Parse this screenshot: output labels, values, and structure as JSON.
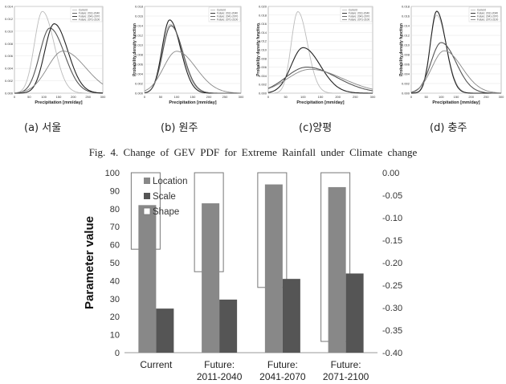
{
  "figure_caption": "Fig. 4. Change of GEV PDF for Extreme Rainfall under Climate change",
  "panels": [
    {
      "caption": "(a) 서울",
      "xlabel": "Precipitation [mm/day]",
      "ylabel": "",
      "xticks": [
        "0",
        "50",
        "100",
        "150",
        "200",
        "250",
        "300"
      ],
      "yticks": [
        "0.000",
        "0.002",
        "0.004",
        "0.006",
        "0.008",
        "0.010",
        "0.012",
        "0.014"
      ],
      "legend": [
        "Current",
        "Future: 2011-2040",
        "Future: 2041-2070",
        "Future: 2071-2100"
      ]
    },
    {
      "caption": "(b) 원주",
      "xlabel": "Precipitation [mm/day]",
      "ylabel": "Probability density function",
      "xticks": [
        "0",
        "50",
        "100",
        "150",
        "200",
        "250",
        "300"
      ],
      "yticks": [
        "0.000",
        "0.002",
        "0.004",
        "0.006",
        "0.008",
        "0.010",
        "0.012",
        "0.014",
        "0.016",
        "0.018"
      ],
      "legend": [
        "Current",
        "Future: 2011-2040",
        "Future: 2041-2070",
        "Future: 2071-2100"
      ]
    },
    {
      "caption": "(c)양평",
      "xlabel": "Precipitation [mm/day]",
      "ylabel": "Probability density function",
      "xticks": [
        "0",
        "50",
        "100",
        "150",
        "200",
        "250",
        "300"
      ],
      "yticks": [
        "0.000",
        "0.002",
        "0.004",
        "0.006",
        "0.008",
        "0.010",
        "0.012",
        "0.014",
        "0.016",
        "0.018",
        "0.020"
      ],
      "legend": [
        "Current",
        "Future: 2011-2040",
        "Future: 2041-2070",
        "Future: 2071-2100"
      ]
    },
    {
      "caption": "(d) 충주",
      "xlabel": "Precipitation [mm/day]",
      "ylabel": "Probability density function",
      "xticks": [
        "0",
        "50",
        "100",
        "150",
        "200",
        "250",
        "300"
      ],
      "yticks": [
        "0.000",
        "0.002",
        "0.004",
        "0.006",
        "0.008",
        "0.010",
        "0.012",
        "0.014",
        "0.016",
        "0.018"
      ],
      "legend": [
        "Current",
        "Future: 2011-2040",
        "Future: 2041-2070",
        "Future: 2071-2100"
      ]
    }
  ],
  "chart_data": [
    {
      "type": "line",
      "panel": "(a) 서울",
      "xlim": [
        0,
        300
      ],
      "ylim": [
        0,
        0.014
      ],
      "series": [
        {
          "name": "Current",
          "peak_x": 95,
          "peak_y": 0.0132,
          "color": "#bbbbbb"
        },
        {
          "name": "Future: 2011-2040",
          "peak_x": 120,
          "peak_y": 0.0105,
          "color": "#555555"
        },
        {
          "name": "Future: 2041-2070",
          "peak_x": 135,
          "peak_y": 0.0112,
          "color": "#222222"
        },
        {
          "name": "Future: 2071-2100",
          "peak_x": 165,
          "peak_y": 0.0068,
          "color": "#888888"
        }
      ]
    },
    {
      "type": "line",
      "panel": "(b) 원주",
      "xlim": [
        0,
        300
      ],
      "ylim": [
        0,
        0.018
      ],
      "series": [
        {
          "name": "Current",
          "peak_x": 80,
          "peak_y": 0.0143,
          "color": "#bbbbbb"
        },
        {
          "name": "Future: 2011-2040",
          "peak_x": 78,
          "peak_y": 0.0152,
          "color": "#222222"
        },
        {
          "name": "Future: 2041-2070",
          "peak_x": 82,
          "peak_y": 0.014,
          "color": "#555555"
        },
        {
          "name": "Future: 2071-2100",
          "peak_x": 100,
          "peak_y": 0.0087,
          "color": "#888888"
        }
      ]
    },
    {
      "type": "line",
      "panel": "(c)양평",
      "xlim": [
        0,
        300
      ],
      "ylim": [
        0,
        0.02
      ],
      "series": [
        {
          "name": "Current",
          "peak_x": 85,
          "peak_y": 0.0188,
          "color": "#bbbbbb"
        },
        {
          "name": "Future: 2011-2040",
          "peak_x": 100,
          "peak_y": 0.0105,
          "color": "#222222"
        },
        {
          "name": "Future: 2041-2070",
          "peak_x": 110,
          "peak_y": 0.006,
          "color": "#555555"
        },
        {
          "name": "Future: 2071-2100",
          "peak_x": 120,
          "peak_y": 0.0055,
          "color": "#888888"
        }
      ]
    },
    {
      "type": "line",
      "panel": "(d) 충주",
      "xlim": [
        0,
        300
      ],
      "ylim": [
        0,
        0.018
      ],
      "series": [
        {
          "name": "Current",
          "peak_x": 85,
          "peak_y": 0.0162,
          "color": "#bbbbbb"
        },
        {
          "name": "Future: 2011-2040",
          "peak_x": 85,
          "peak_y": 0.017,
          "color": "#222222"
        },
        {
          "name": "Future: 2041-2070",
          "peak_x": 100,
          "peak_y": 0.0105,
          "color": "#555555"
        },
        {
          "name": "Future: 2071-2100",
          "peak_x": 110,
          "peak_y": 0.0088,
          "color": "#888888"
        }
      ]
    },
    {
      "type": "bar",
      "categories": [
        "Current",
        "Future:\n2011-2040",
        "Future:\n2041-2070",
        "Future:\n2071-2100"
      ],
      "ylabel": "Parameter value",
      "ylim": [
        0,
        100
      ],
      "y2lim": [
        -0.4,
        0.0
      ],
      "yticks": [
        "0",
        "10",
        "20",
        "30",
        "40",
        "50",
        "60",
        "70",
        "80",
        "90",
        "100"
      ],
      "y2ticks": [
        "0.00",
        "-0.05",
        "-0.10",
        "-0.15",
        "-0.20",
        "-0.25",
        "-0.30",
        "-0.35",
        "-0.40"
      ],
      "legend_position": "top-left",
      "series": [
        {
          "name": "Location",
          "axis": "left",
          "values": [
            82,
            83,
            93.5,
            92
          ],
          "color": "#888888"
        },
        {
          "name": "Scale",
          "axis": "left",
          "values": [
            24.5,
            29.5,
            41,
            44
          ],
          "color": "#555555"
        },
        {
          "name": "Shape",
          "axis": "right",
          "values": [
            -0.17,
            -0.22,
            -0.255,
            -0.375
          ],
          "color": "#ffffff"
        }
      ]
    }
  ]
}
